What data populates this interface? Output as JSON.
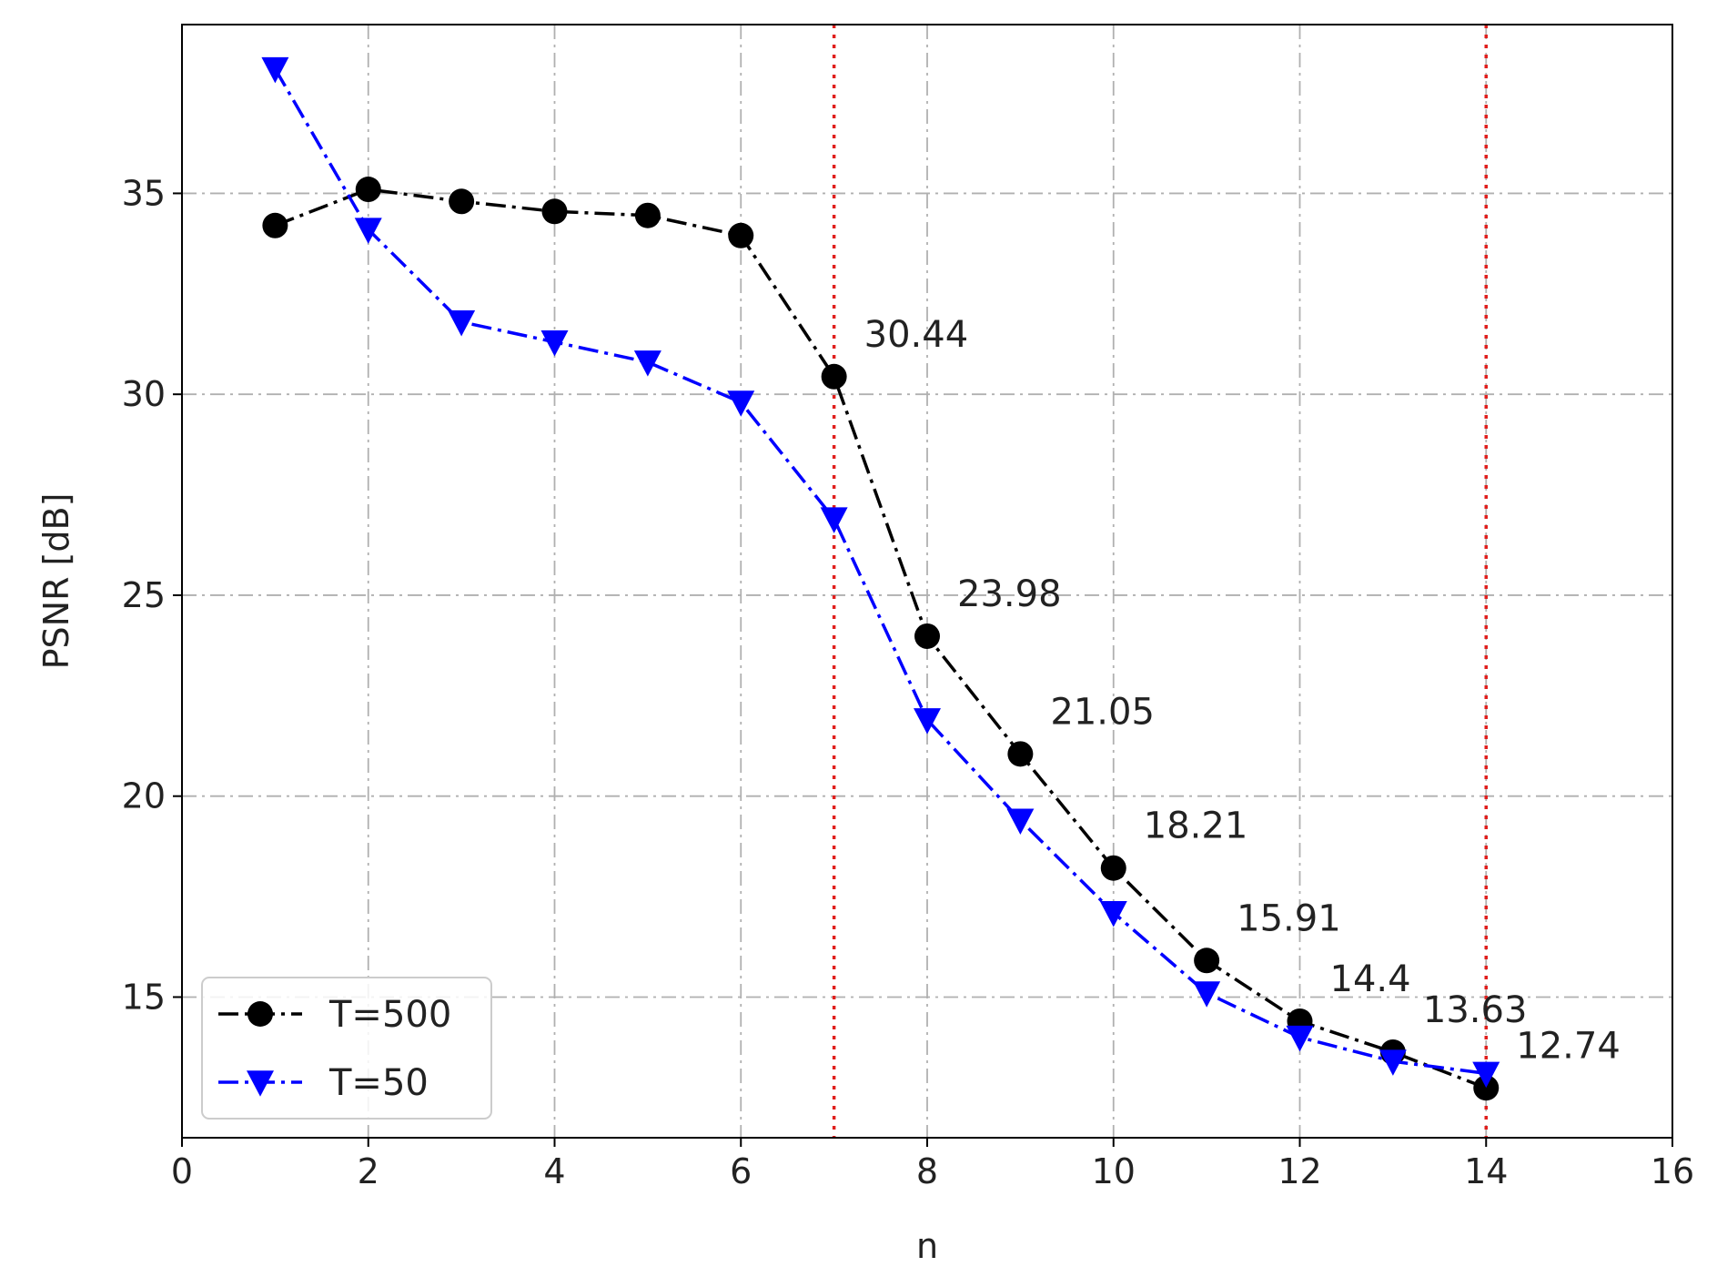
{
  "chart_data": {
    "type": "line",
    "xlabel": "n",
    "ylabel": "PSNR [dB]",
    "xlim": [
      0,
      16
    ],
    "ylim": [
      11.5,
      39.2
    ],
    "xticks": [
      0,
      2,
      4,
      6,
      8,
      10,
      12,
      14,
      16
    ],
    "yticks": [
      15,
      20,
      25,
      30,
      35
    ],
    "grid": true,
    "grid_style": "dash-dot",
    "legend_position": "lower-left",
    "vertical_lines": [
      {
        "x": 7,
        "color": "#e0201e",
        "style": "dotted"
      },
      {
        "x": 14,
        "color": "#e0201e",
        "style": "dotted"
      }
    ],
    "series": [
      {
        "name": "T=500",
        "color": "#000000",
        "marker": "circle",
        "x": [
          1,
          2,
          3,
          4,
          5,
          6,
          7,
          8,
          9,
          10,
          11,
          12,
          13,
          14
        ],
        "values": [
          34.2,
          35.1,
          34.8,
          34.55,
          34.45,
          33.95,
          30.44,
          23.98,
          21.05,
          18.21,
          15.91,
          14.4,
          13.63,
          12.74
        ]
      },
      {
        "name": "T=50",
        "color": "#0000ff",
        "marker": "triangle-down",
        "x": [
          1,
          2,
          3,
          4,
          5,
          6,
          7,
          8,
          9,
          10,
          11,
          12,
          13,
          14
        ],
        "values": [
          38.1,
          34.1,
          31.8,
          31.3,
          30.8,
          29.8,
          26.9,
          21.9,
          19.4,
          17.1,
          15.1,
          14.0,
          13.4,
          13.1
        ]
      }
    ],
    "annotations": [
      {
        "x": 7,
        "y": 30.44,
        "text": "30.44"
      },
      {
        "x": 8,
        "y": 23.98,
        "text": "23.98"
      },
      {
        "x": 9,
        "y": 21.05,
        "text": "21.05"
      },
      {
        "x": 10,
        "y": 18.21,
        "text": "18.21"
      },
      {
        "x": 11,
        "y": 15.91,
        "text": "15.91"
      },
      {
        "x": 12,
        "y": 14.4,
        "text": "14.4"
      },
      {
        "x": 13,
        "y": 13.63,
        "text": "13.63"
      },
      {
        "x": 14,
        "y": 12.74,
        "text": "12.74"
      }
    ]
  }
}
